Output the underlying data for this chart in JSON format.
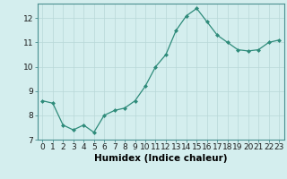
{
  "x": [
    0,
    1,
    2,
    3,
    4,
    5,
    6,
    7,
    8,
    9,
    10,
    11,
    12,
    13,
    14,
    15,
    16,
    17,
    18,
    19,
    20,
    21,
    22,
    23
  ],
  "y": [
    8.6,
    8.5,
    7.6,
    7.4,
    7.6,
    7.3,
    8.0,
    8.2,
    8.3,
    8.6,
    9.2,
    10.0,
    10.5,
    11.5,
    12.1,
    12.4,
    11.85,
    11.3,
    11.0,
    10.7,
    10.65,
    10.7,
    11.0,
    11.1
  ],
  "line_color": "#2e8b7a",
  "marker": "D",
  "marker_size": 2,
  "bg_color": "#d4eeee",
  "grid_color": "#b8d8d8",
  "xlabel": "Humidex (Indice chaleur)",
  "ylim": [
    7.0,
    12.6
  ],
  "xlim": [
    -0.5,
    23.5
  ],
  "yticks": [
    7,
    8,
    9,
    10,
    11,
    12
  ],
  "xticks": [
    0,
    1,
    2,
    3,
    4,
    5,
    6,
    7,
    8,
    9,
    10,
    11,
    12,
    13,
    14,
    15,
    16,
    17,
    18,
    19,
    20,
    21,
    22,
    23
  ],
  "tick_fontsize": 6.5,
  "xlabel_fontsize": 7.5
}
